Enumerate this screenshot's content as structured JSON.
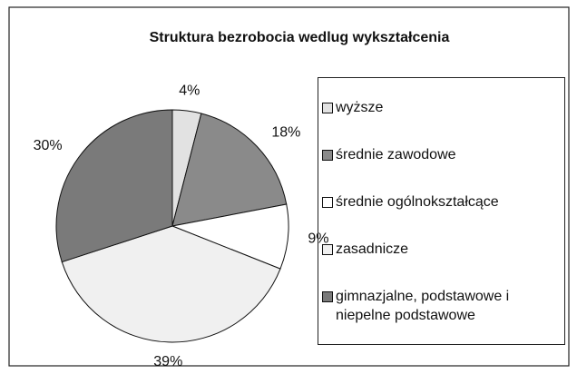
{
  "chart_data": {
    "type": "pie",
    "title": "Struktura bezrobocia wedlug wykształcenia",
    "categories": [
      "wyższe",
      "średnie zawodowe",
      "średnie ogólnokształcące",
      "zasadnicze",
      "gimnazjalne, podstawowe i niepelne podstawowe"
    ],
    "values": [
      4,
      18,
      9,
      39,
      30
    ],
    "value_labels": [
      "4%",
      "18%",
      "9%",
      "39%",
      "30%"
    ],
    "colors": [
      "#e2e2e2",
      "#8a8a8a",
      "#ffffff",
      "#f0f0f0",
      "#7a7a7a"
    ]
  }
}
